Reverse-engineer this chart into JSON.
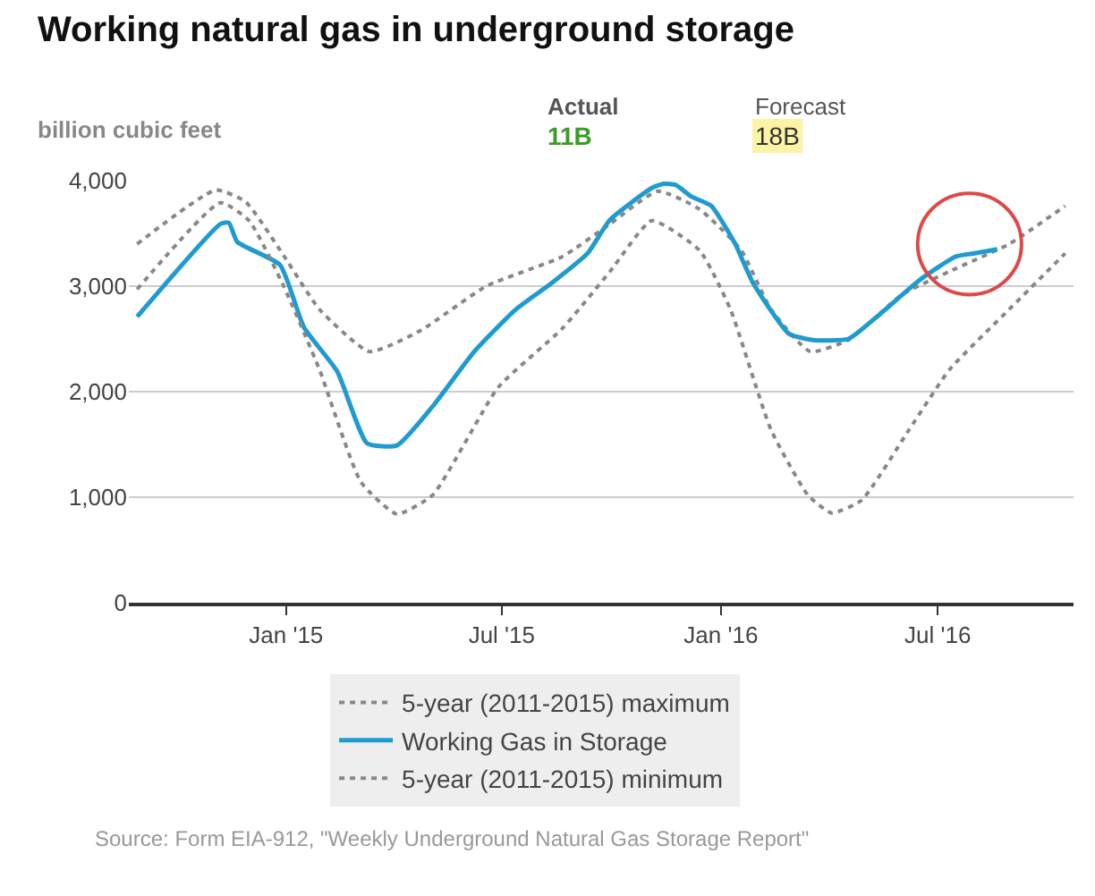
{
  "chart_data": {
    "type": "line",
    "title": "Working natural gas in underground storage",
    "ylabel": "billion cubic feet",
    "annotations": [
      "Actual",
      "11B",
      "Forecast",
      "18B",
      "Source: Form EIA-912, \"Weekly Underground Natural Gas Storage Report\""
    ],
    "series": [
      {
        "name": "5-year (2011-2015) maximum",
        "color": "#888888",
        "line_style": "dotted",
        "x": [
          "2014-08-29",
          "2014-11-03",
          "2014-11-28",
          "2014-12-30",
          "2015-01-29",
          "2015-03-12",
          "2015-04-24",
          "2015-06-18",
          "2015-08-21",
          "2015-09-30",
          "2015-11-09",
          "2015-12-14",
          "2016-01-18",
          "2016-02-12",
          "2016-03-16",
          "2016-04-17",
          "2016-06-01",
          "2016-07-11",
          "2016-08-30",
          "2016-10-16"
        ],
        "values": [
          3400,
          3910,
          3800,
          3290,
          2780,
          2380,
          2580,
          3000,
          3280,
          3590,
          3900,
          3730,
          3340,
          2780,
          2380,
          2490,
          2920,
          3140,
          3400,
          3760
        ]
      },
      {
        "name": "Working Gas in Storage",
        "color": "#1f9bd1",
        "line_style": "solid",
        "x": [
          "2014-08-29",
          "2014-11-07",
          "2014-11-14",
          "2014-11-21",
          "2014-12-27",
          "2015-01-16",
          "2015-02-13",
          "2015-03-10",
          "2015-04-04",
          "2015-05-04",
          "2015-06-08",
          "2015-07-13",
          "2015-08-12",
          "2015-09-11",
          "2015-09-30",
          "2015-11-04",
          "2015-11-14",
          "2015-11-24",
          "2015-12-07",
          "2015-12-24",
          "2016-01-13",
          "2016-01-28",
          "2016-02-27",
          "2016-03-18",
          "2016-04-17",
          "2016-05-12",
          "2016-06-16",
          "2016-07-16",
          "2016-07-31",
          "2016-08-20"
        ],
        "values": [
          2710,
          3590,
          3600,
          3420,
          3200,
          2610,
          2190,
          1510,
          1490,
          1860,
          2380,
          2780,
          3030,
          3310,
          3630,
          3930,
          3970,
          3960,
          3850,
          3760,
          3400,
          3030,
          2550,
          2490,
          2500,
          2720,
          3060,
          3280,
          3310,
          3350
        ]
      },
      {
        "name": "5-year (2011-2015) minimum",
        "color": "#888888",
        "line_style": "dotted",
        "x": [
          "2014-08-29",
          "2014-11-07",
          "2014-12-01",
          "2014-12-30",
          "2015-01-29",
          "2015-03-05",
          "2015-04-04",
          "2015-05-04",
          "2015-06-28",
          "2015-08-21",
          "2015-09-30",
          "2015-11-04",
          "2015-12-14",
          "2016-01-09",
          "2016-02-12",
          "2016-03-14",
          "2016-04-03",
          "2016-04-28",
          "2016-06-07",
          "2016-07-11",
          "2016-08-30",
          "2016-10-16"
        ],
        "values": [
          2970,
          3790,
          3620,
          3000,
          2210,
          1140,
          840,
          1020,
          2040,
          2600,
          3140,
          3620,
          3340,
          2780,
          1640,
          1020,
          850,
          970,
          1640,
          2210,
          2780,
          3310
        ]
      }
    ],
    "xlim": [
      "2014-08-22",
      "2016-10-23"
    ],
    "xticks": [
      {
        "value": "2015-01-01",
        "label": "Jan '15"
      },
      {
        "value": "2015-07-01",
        "label": "Jul '15"
      },
      {
        "value": "2016-01-01",
        "label": "Jan '16"
      },
      {
        "value": "2016-07-01",
        "label": "Jul '16"
      }
    ],
    "ylim": [
      0,
      4000
    ],
    "yticks": [
      {
        "value": 0,
        "label": "0"
      },
      {
        "value": 1000,
        "label": "1,000"
      },
      {
        "value": 2000,
        "label": "2,000"
      },
      {
        "value": 3000,
        "label": "3,000"
      },
      {
        "value": 4000,
        "label": "4,000"
      }
    ],
    "grid": "y",
    "legend": "bottom",
    "marker": "none"
  }
}
